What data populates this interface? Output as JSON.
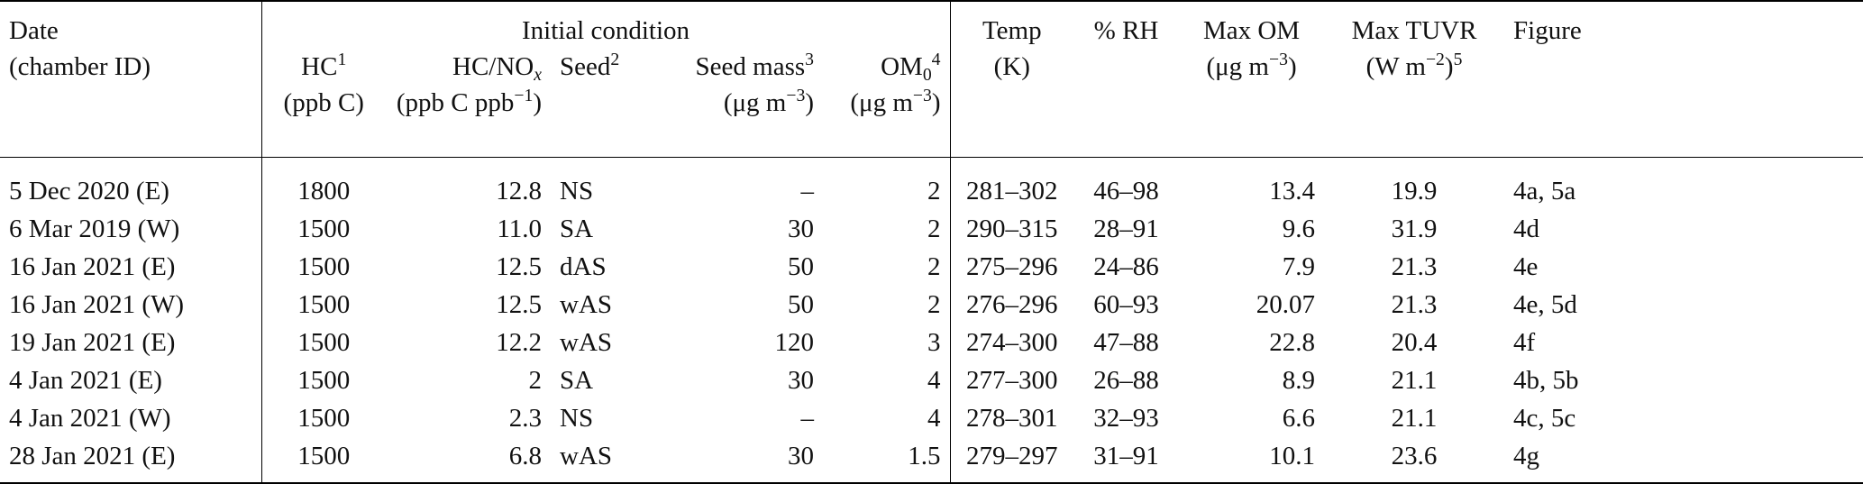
{
  "header": {
    "date": "Date",
    "chamber_id": "(chamber ID)",
    "initial_condition": "Initial condition",
    "hc": "HC",
    "hc_fn": "1",
    "hc_unit": "(ppb C)",
    "hc_nox": "HC/NO",
    "hc_nox_sub": "x",
    "hc_nox_unit_pre": "(ppb C ppb",
    "hc_nox_unit_exp": "−1",
    "hc_nox_unit_post": ")",
    "seed": "Seed",
    "seed_fn": "2",
    "seed_mass": "Seed mass",
    "seed_mass_fn": "3",
    "ugm_pre": "(μg m",
    "ugm_exp": "−3",
    "ugm_post": ")",
    "om0": "OM",
    "om0_sub": "0",
    "om0_fn": "4",
    "temp": "Temp",
    "temp_unit": "(K)",
    "rh": "% RH",
    "max_om": "Max OM",
    "max_tuvr": "Max TUVR",
    "tuvr_unit_pre": "(W m",
    "tuvr_unit_exp": "−2",
    "tuvr_unit_post": ")",
    "tuvr_fn": "5",
    "figure": "Figure"
  },
  "rows": [
    {
      "date": "5 Dec 2020 (E)",
      "hc": "1800",
      "hc_nox": "12.8",
      "seed": "NS",
      "seed_mass": "–",
      "om0": "2",
      "temp": "281–302",
      "rh": "46–98",
      "max_om": "13.4",
      "max_tuvr": "19.9",
      "figure": "4a, 5a"
    },
    {
      "date": "6 Mar 2019 (W)",
      "hc": "1500",
      "hc_nox": "11.0",
      "seed": "SA",
      "seed_mass": "30",
      "om0": "2",
      "temp": "290–315",
      "rh": "28–91",
      "max_om": "9.6",
      "max_tuvr": "31.9",
      "figure": "4d"
    },
    {
      "date": "16 Jan 2021 (E)",
      "hc": "1500",
      "hc_nox": "12.5",
      "seed": "dAS",
      "seed_mass": "50",
      "om0": "2",
      "temp": "275–296",
      "rh": "24–86",
      "max_om": "7.9",
      "max_tuvr": "21.3",
      "figure": "4e"
    },
    {
      "date": "16 Jan 2021 (W)",
      "hc": "1500",
      "hc_nox": "12.5",
      "seed": "wAS",
      "seed_mass": "50",
      "om0": "2",
      "temp": "276–296",
      "rh": "60–93",
      "max_om": "20.07",
      "max_tuvr": "21.3",
      "figure": "4e, 5d"
    },
    {
      "date": "19 Jan 2021 (E)",
      "hc": "1500",
      "hc_nox": "12.2",
      "seed": "wAS",
      "seed_mass": "120",
      "om0": "3",
      "temp": "274–300",
      "rh": "47–88",
      "max_om": "22.8",
      "max_tuvr": "20.4",
      "figure": "4f"
    },
    {
      "date": "4 Jan 2021 (E)",
      "hc": "1500",
      "hc_nox": "2",
      "seed": "SA",
      "seed_mass": "30",
      "om0": "4",
      "temp": "277–300",
      "rh": "26–88",
      "max_om": "8.9",
      "max_tuvr": "21.1",
      "figure": "4b, 5b"
    },
    {
      "date": "4 Jan 2021 (W)",
      "hc": "1500",
      "hc_nox": "2.3",
      "seed": "NS",
      "seed_mass": "–",
      "om0": "4",
      "temp": "278–301",
      "rh": "32–93",
      "max_om": "6.6",
      "max_tuvr": "21.1",
      "figure": "4c, 5c"
    },
    {
      "date": "28 Jan 2021 (E)",
      "hc": "1500",
      "hc_nox": "6.8",
      "seed": "wAS",
      "seed_mass": "30",
      "om0": "1.5",
      "temp": "279–297",
      "rh": "31–91",
      "max_om": "10.1",
      "max_tuvr": "23.6",
      "figure": "4g"
    }
  ]
}
